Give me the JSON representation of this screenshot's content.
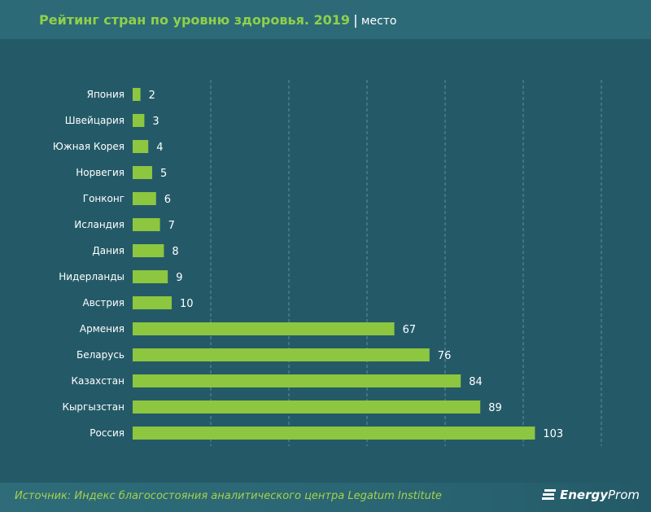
{
  "header": {
    "title": "Рейтинг стран по уровню здоровья. 2019",
    "separator": "|",
    "unit": "место"
  },
  "footer": {
    "source": "Источник: Индекс благосостояния аналитического центра Legatum Institute",
    "logo": "EnergyProm",
    "logo_bold": "Energy",
    "logo_rest": "Prom"
  },
  "colors": {
    "background": "#245a68",
    "bar": "#8dc63f",
    "title": "#8fd04a"
  },
  "chart_data": {
    "type": "bar",
    "orientation": "horizontal",
    "categories": [
      "Япония",
      "Швейцария",
      "Южная Корея",
      "Норвегия",
      "Гонконг",
      "Исландия",
      "Дания",
      "Нидерланды",
      "Австрия",
      "Армения",
      "Беларусь",
      "Казахстан",
      "Кыргызстан",
      "Россия"
    ],
    "values": [
      2,
      3,
      4,
      5,
      6,
      7,
      8,
      9,
      10,
      67,
      76,
      84,
      89,
      103
    ],
    "xlim": [
      0,
      120
    ],
    "grid": "vertical dashed",
    "data_labels": true
  }
}
